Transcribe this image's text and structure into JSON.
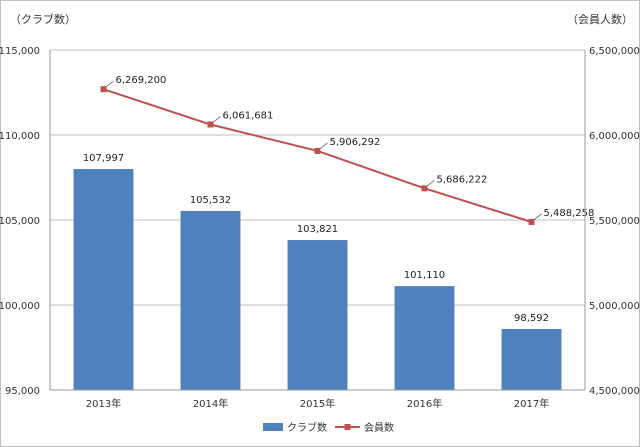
{
  "chart_data": {
    "type": "bar",
    "categories": [
      "2013年",
      "2014年",
      "2015年",
      "2016年",
      "2017年"
    ],
    "series": [
      {
        "name": "クラブ数",
        "type": "bar",
        "axis": "left",
        "color": "#4F81BD",
        "values": [
          107997,
          105532,
          103821,
          101110,
          98592
        ],
        "labels": [
          "107,997",
          "105,532",
          "103,821",
          "101,110",
          "98,592"
        ]
      },
      {
        "name": "会員数",
        "type": "line",
        "axis": "right",
        "color": "#C0504D",
        "values": [
          6269200,
          6061681,
          5906292,
          5686222,
          5488258
        ],
        "labels": [
          "6,269,200",
          "6,061,681",
          "5,906,292",
          "5,686,222",
          "5,488,258"
        ]
      }
    ],
    "y_left": {
      "unit_label": "（クラブ数）",
      "range": [
        95000,
        115000
      ],
      "ticks": [
        95000,
        100000,
        105000,
        110000,
        115000
      ],
      "tick_labels": [
        "95,000",
        "100,000",
        "105,000",
        "110,000",
        "115,000"
      ]
    },
    "y_right": {
      "unit_label": "（会員人数）",
      "range": [
        4500000,
        6500000
      ],
      "ticks": [
        4500000,
        5000000,
        5500000,
        6000000,
        6500000
      ],
      "tick_labels": [
        "4,500,000",
        "5,000,000",
        "5,500,000",
        "6,000,000",
        "6,500,000"
      ]
    },
    "grid": true,
    "legend_position": "bottom"
  }
}
